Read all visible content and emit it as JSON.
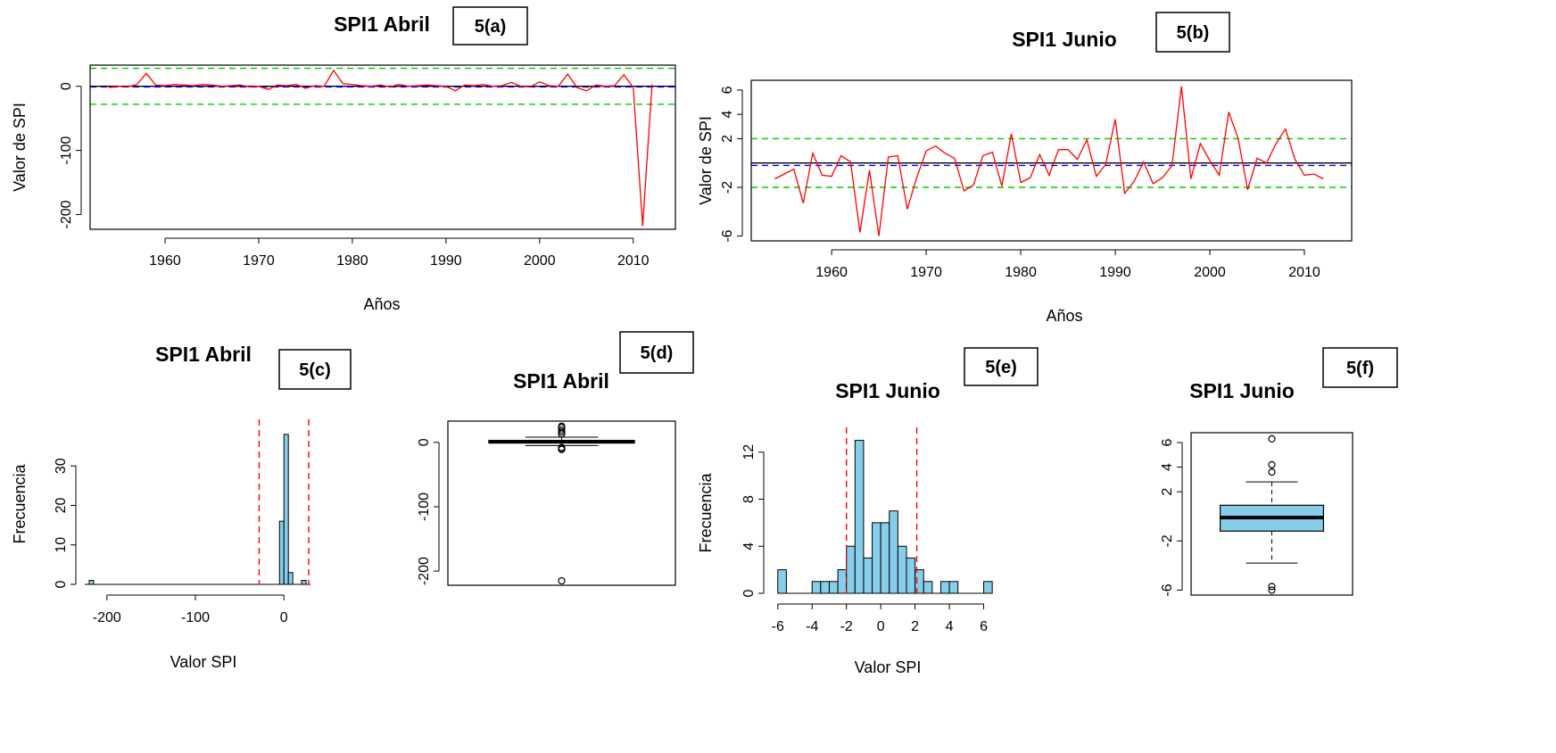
{
  "panel_tags": [
    "5(a)",
    "5(b)",
    "5(c)",
    "5(d)",
    "5(e)",
    "5(f)"
  ],
  "colors": {
    "series": "#ff0000",
    "threshold": "#00cc00",
    "mean": "#0000ff",
    "zero": "#000000",
    "bar": "#87ceeb",
    "box": "#87ceeb",
    "vline": "#ff0000"
  },
  "chart_data": [
    {
      "id": "5a",
      "type": "line",
      "title": "SPI1 Abril",
      "xlabel": "Años",
      "ylabel": "Valor de SPI",
      "xlim": [
        1952,
        2014.5
      ],
      "ylim": [
        -223,
        33
      ],
      "xticks": [
        1960,
        1970,
        1980,
        1990,
        2000,
        2010
      ],
      "yticks": [
        0,
        -100,
        -200
      ],
      "hlines": {
        "upper_threshold": 28,
        "lower_threshold": -28,
        "zero": 0,
        "mean": -1
      },
      "x": [
        1954,
        1955,
        1956,
        1957,
        1958,
        1959,
        1960,
        1961,
        1962,
        1963,
        1964,
        1965,
        1966,
        1967,
        1968,
        1969,
        1970,
        1971,
        1972,
        1973,
        1974,
        1975,
        1976,
        1977,
        1978,
        1979,
        1980,
        1981,
        1982,
        1983,
        1984,
        1985,
        1986,
        1987,
        1988,
        1989,
        1990,
        1991,
        1992,
        1993,
        1994,
        1995,
        1996,
        1997,
        1998,
        1999,
        2000,
        2001,
        2002,
        2003,
        2004,
        2005,
        2006,
        2007,
        2008,
        2009,
        2010,
        2011,
        2012
      ],
      "y": [
        -2,
        0,
        -1,
        3,
        20,
        2,
        1,
        3,
        2,
        1,
        3,
        2,
        0,
        1,
        2,
        -1,
        0,
        -5,
        2,
        1,
        3,
        -3,
        1,
        0,
        25,
        4,
        3,
        1,
        0,
        2,
        -1,
        3,
        0,
        1,
        2,
        1,
        0,
        -7,
        2,
        1,
        3,
        0,
        1,
        6,
        0,
        -1,
        7,
        1,
        0,
        19,
        -2,
        -7,
        2,
        0,
        1,
        18,
        -2,
        -218,
        3
      ]
    },
    {
      "id": "5b",
      "type": "line",
      "title": "SPI1 Junio",
      "xlabel": "Años",
      "ylabel": "Valor de SPI",
      "xlim": [
        1951.5,
        2015
      ],
      "ylim": [
        -6.4,
        6.8
      ],
      "xticks": [
        1960,
        1970,
        1980,
        1990,
        2000,
        2010
      ],
      "yticks": [
        6,
        4,
        2,
        -2,
        -6
      ],
      "hlines": {
        "upper_threshold": 2,
        "lower_threshold": -2,
        "zero": 0,
        "mean": -0.2
      },
      "x": [
        1954,
        1955,
        1956,
        1957,
        1958,
        1959,
        1960,
        1961,
        1962,
        1963,
        1964,
        1965,
        1966,
        1967,
        1968,
        1969,
        1970,
        1971,
        1972,
        1973,
        1974,
        1975,
        1976,
        1977,
        1978,
        1979,
        1980,
        1981,
        1982,
        1983,
        1984,
        1985,
        1986,
        1987,
        1988,
        1989,
        1990,
        1991,
        1992,
        1993,
        1994,
        1995,
        1996,
        1997,
        1998,
        1999,
        2000,
        2001,
        2002,
        2003,
        2004,
        2005,
        2006,
        2007,
        2008,
        2009,
        2010,
        2011,
        2012
      ],
      "y": [
        -1.3,
        -0.9,
        -0.5,
        -3.3,
        0.8,
        -1.0,
        -1.1,
        0.6,
        0.1,
        -5.7,
        -0.6,
        -6.0,
        0.5,
        0.6,
        -3.8,
        -1.2,
        1.0,
        1.4,
        0.8,
        0.4,
        -2.3,
        -1.8,
        0.6,
        0.9,
        -1.9,
        2.4,
        -1.6,
        -1.2,
        0.7,
        -1.0,
        1.1,
        1.1,
        0.3,
        1.9,
        -1.1,
        -0.1,
        3.6,
        -2.5,
        -1.5,
        0.1,
        -1.7,
        -1.2,
        -0.2,
        6.3,
        -1.3,
        1.6,
        0.2,
        -1.0,
        4.2,
        2.0,
        -2.2,
        0.4,
        0.0,
        1.6,
        2.8,
        0.3,
        -1.0,
        -0.9,
        -1.3
      ]
    },
    {
      "id": "5c",
      "type": "bar",
      "title": "SPI1 Abril",
      "xlabel": "Valor SPI",
      "ylabel": "Frecuencia",
      "xlim": [
        -225,
        32
      ],
      "ylim": [
        0,
        40
      ],
      "xticks": [
        -200,
        -100,
        0
      ],
      "yticks": [
        0,
        10,
        20,
        30
      ],
      "bin_edges": [
        -225,
        -220,
        -215,
        -210,
        -205,
        -200,
        -195,
        -190,
        -185,
        -180,
        -175,
        -170,
        -165,
        -160,
        -155,
        -150,
        -145,
        -140,
        -135,
        -130,
        -125,
        -120,
        -115,
        -110,
        -105,
        -100,
        -95,
        -90,
        -85,
        -80,
        -75,
        -70,
        -65,
        -60,
        -55,
        -50,
        -45,
        -40,
        -35,
        -30,
        -25,
        -20,
        -15,
        -10,
        -5,
        0,
        5,
        10,
        15,
        20,
        25,
        30
      ],
      "values": [
        0,
        1,
        0,
        0,
        0,
        0,
        0,
        0,
        0,
        0,
        0,
        0,
        0,
        0,
        0,
        0,
        0,
        0,
        0,
        0,
        0,
        0,
        0,
        0,
        0,
        0,
        0,
        0,
        0,
        0,
        0,
        0,
        0,
        0,
        0,
        0,
        0,
        0,
        0,
        0,
        0,
        0,
        0,
        0,
        16,
        38,
        3,
        0,
        0,
        1,
        0
      ],
      "vlines": [
        -28,
        28
      ]
    },
    {
      "id": "5d",
      "type": "box",
      "title": "SPI1 Abril",
      "ylim": [
        -222,
        33
      ],
      "yticks": [
        0,
        -100,
        -200
      ],
      "box": {
        "lower_whisker": -5,
        "q1": -1,
        "median": 1,
        "q3": 3,
        "upper_whisker": 8
      },
      "outliers": [
        -8,
        -10,
        -11,
        13,
        16,
        19,
        23,
        25,
        -215
      ]
    },
    {
      "id": "5e",
      "type": "bar",
      "title": "SPI1 Junio",
      "xlabel": "Valor SPI",
      "ylabel": "Frecuencia",
      "xlim": [
        -6.3,
        6.7
      ],
      "ylim": [
        0,
        13.5
      ],
      "xticks": [
        -6,
        -4,
        -2,
        0,
        2,
        4,
        6
      ],
      "yticks": [
        0,
        4,
        8,
        12
      ],
      "bin_edges": [
        -6,
        -5.5,
        -5,
        -4.5,
        -4,
        -3.5,
        -3,
        -2.5,
        -2,
        -1.5,
        -1,
        -0.5,
        0,
        0.5,
        1,
        1.5,
        2,
        2.5,
        3,
        3.5,
        4,
        4.5,
        5,
        5.5,
        6,
        6.5
      ],
      "values": [
        2,
        0,
        0,
        0,
        1,
        1,
        1,
        2,
        4,
        13,
        3,
        6,
        6,
        7,
        4,
        3,
        2,
        1,
        0,
        1,
        1,
        0,
        0,
        0,
        1
      ],
      "vlines": [
        -2,
        2.1
      ]
    },
    {
      "id": "5f",
      "type": "box",
      "title": "SPI1 Junio",
      "ylim": [
        -6.4,
        6.8
      ],
      "yticks": [
        6,
        4,
        2,
        -2,
        -6
      ],
      "box": {
        "lower_whisker": -3.8,
        "q1": -1.2,
        "median": -0.1,
        "q3": 0.9,
        "upper_whisker": 2.8
      },
      "outliers": [
        6.3,
        4.2,
        3.6,
        -5.7,
        -6.0
      ]
    }
  ]
}
